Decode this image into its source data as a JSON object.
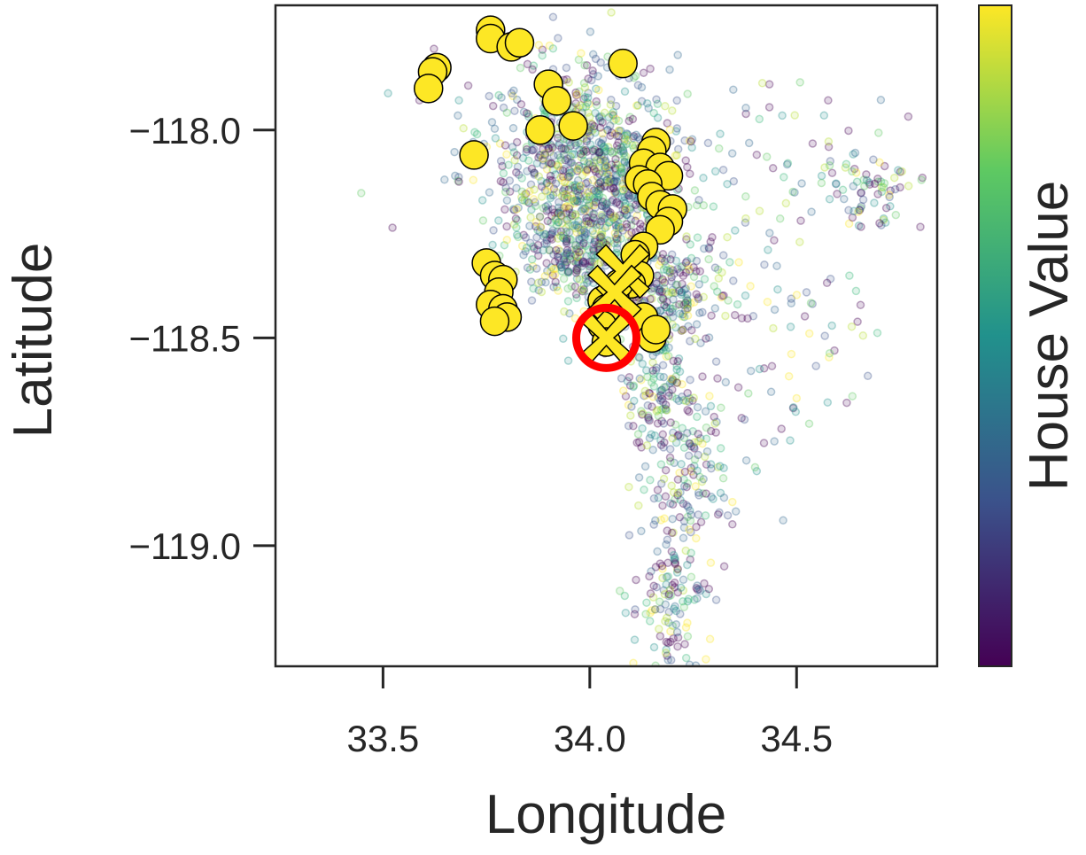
{
  "chart_data": {
    "type": "scatter",
    "title": "",
    "xlabel": "Longitude",
    "ylabel": "Latitude",
    "xlim": [
      33.24,
      34.84
    ],
    "ylim": [
      -119.29,
      -117.7
    ],
    "xticks": [
      33.5,
      34.0,
      34.5
    ],
    "xtick_labels": [
      "33.5",
      "34.0",
      "34.5"
    ],
    "yticks": [
      -118.0,
      -118.5,
      -119.0
    ],
    "ytick_labels": [
      "−118.0",
      "−118.5",
      "−119.0"
    ],
    "y_inverted": true,
    "grid": false,
    "colorbar": {
      "label": "House Value",
      "colormap": "viridis",
      "colors": [
        "#440154",
        "#3b528b",
        "#21918c",
        "#5ec962",
        "#fde725"
      ]
    },
    "background_points_note_colors": "viridis, alpha ~0.25",
    "neighbor_points": {
      "color": "#fde725",
      "edge_color": "#000000",
      "points": [
        [
          33.76,
          -117.76
        ],
        [
          33.76,
          -117.78
        ],
        [
          33.81,
          -117.8
        ],
        [
          33.83,
          -117.79
        ],
        [
          33.63,
          -117.85
        ],
        [
          33.62,
          -117.86
        ],
        [
          33.61,
          -117.9
        ],
        [
          33.9,
          -117.89
        ],
        [
          33.92,
          -117.93
        ],
        [
          33.96,
          -117.99
        ],
        [
          33.72,
          -118.06
        ],
        [
          34.16,
          -118.03
        ],
        [
          34.15,
          -118.05
        ],
        [
          34.13,
          -118.08
        ],
        [
          34.17,
          -118.09
        ],
        [
          34.19,
          -118.11
        ],
        [
          34.12,
          -118.12
        ],
        [
          34.14,
          -118.13
        ],
        [
          34.15,
          -118.16
        ],
        [
          34.17,
          -118.18
        ],
        [
          34.2,
          -118.19
        ],
        [
          34.19,
          -118.22
        ],
        [
          34.17,
          -118.24
        ],
        [
          34.13,
          -118.28
        ],
        [
          34.11,
          -118.3
        ],
        [
          34.12,
          -118.35
        ],
        [
          34.1,
          -118.37
        ],
        [
          34.06,
          -118.4
        ],
        [
          34.03,
          -118.41
        ],
        [
          34.04,
          -118.43
        ],
        [
          34.13,
          -118.45
        ],
        [
          34.15,
          -118.5
        ],
        [
          34.16,
          -118.48
        ],
        [
          33.75,
          -118.32
        ],
        [
          33.77,
          -118.35
        ],
        [
          33.79,
          -118.36
        ],
        [
          33.78,
          -118.39
        ],
        [
          33.76,
          -118.42
        ],
        [
          33.79,
          -118.43
        ],
        [
          33.8,
          -118.45
        ],
        [
          33.77,
          -118.46
        ],
        [
          34.07,
          -118.37
        ],
        [
          34.03,
          -118.47
        ],
        [
          34.04,
          -118.51
        ],
        [
          33.88,
          -118.0
        ],
        [
          34.08,
          -117.84
        ]
      ]
    },
    "selected_points": {
      "marker": "x",
      "color": "#fde725",
      "points": [
        [
          34.08,
          -118.34
        ],
        [
          34.06,
          -118.39
        ],
        [
          34.04,
          -118.5
        ]
      ]
    },
    "query_point": {
      "x": 34.04,
      "y": -118.5,
      "ring_color": "#ff0000"
    }
  }
}
